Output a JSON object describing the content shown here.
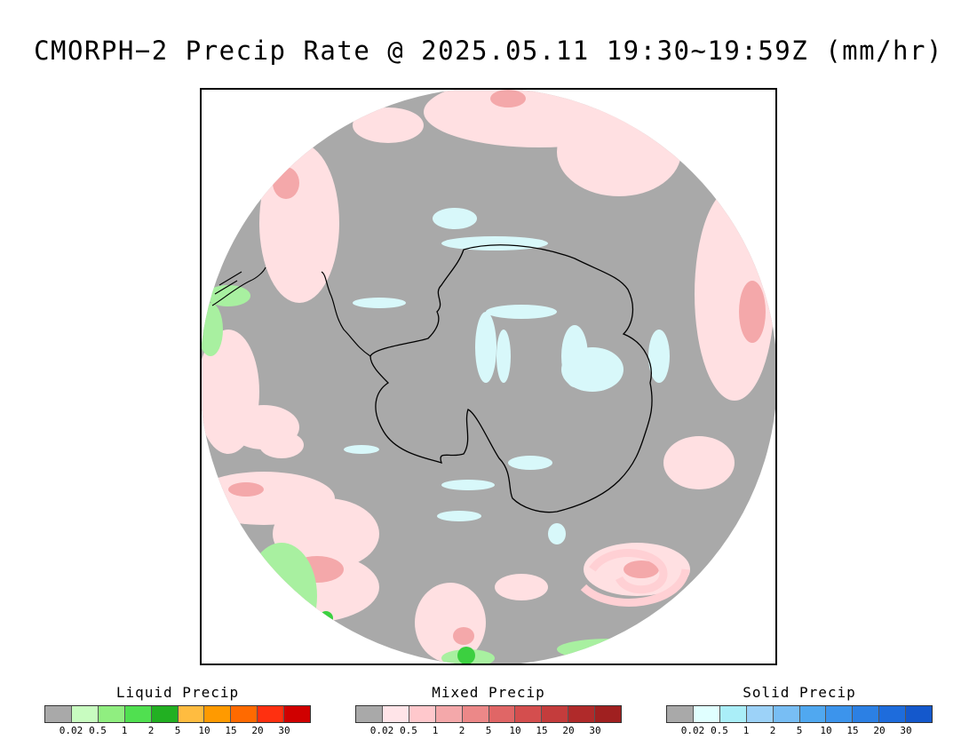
{
  "title": "CMORPH−2 Precip Rate @ 2025.05.11 19:30~19:59Z (mm/hr)",
  "map": {
    "projection": "south polar stereographic",
    "colors": {
      "no_precip": "#a9a9a9",
      "outside": "#ffffff",
      "coastline": "#000000"
    }
  },
  "legends": [
    {
      "title": "Liquid Precip",
      "colors": [
        "#a9a9a9",
        "#c8fcc0",
        "#90ee80",
        "#50e050",
        "#22b022",
        "#ffbc40",
        "#ff9a00",
        "#ff6a00",
        "#ff3010",
        "#d00000"
      ],
      "ticks": [
        "0.02",
        "0.5",
        "1",
        "2",
        "5",
        "10",
        "15",
        "20",
        "30"
      ]
    },
    {
      "title": "Mixed Precip",
      "colors": [
        "#a9a9a9",
        "#ffe4e8",
        "#ffc8cc",
        "#f4a8aa",
        "#ec8888",
        "#e06666",
        "#d44e4e",
        "#c43c3c",
        "#b02a2a",
        "#a02020"
      ],
      "ticks": [
        "0.02",
        "0.5",
        "1",
        "2",
        "5",
        "10",
        "15",
        "20",
        "30"
      ]
    },
    {
      "title": "Solid Precip",
      "colors": [
        "#a9a9a9",
        "#e0ffff",
        "#aaeef8",
        "#9cd2f8",
        "#78bef4",
        "#50a8f0",
        "#3c94ec",
        "#2c80e4",
        "#1e6cdc",
        "#1458cc"
      ],
      "ticks": [
        "0.02",
        "0.5",
        "1",
        "2",
        "5",
        "10",
        "15",
        "20",
        "30"
      ]
    }
  ]
}
